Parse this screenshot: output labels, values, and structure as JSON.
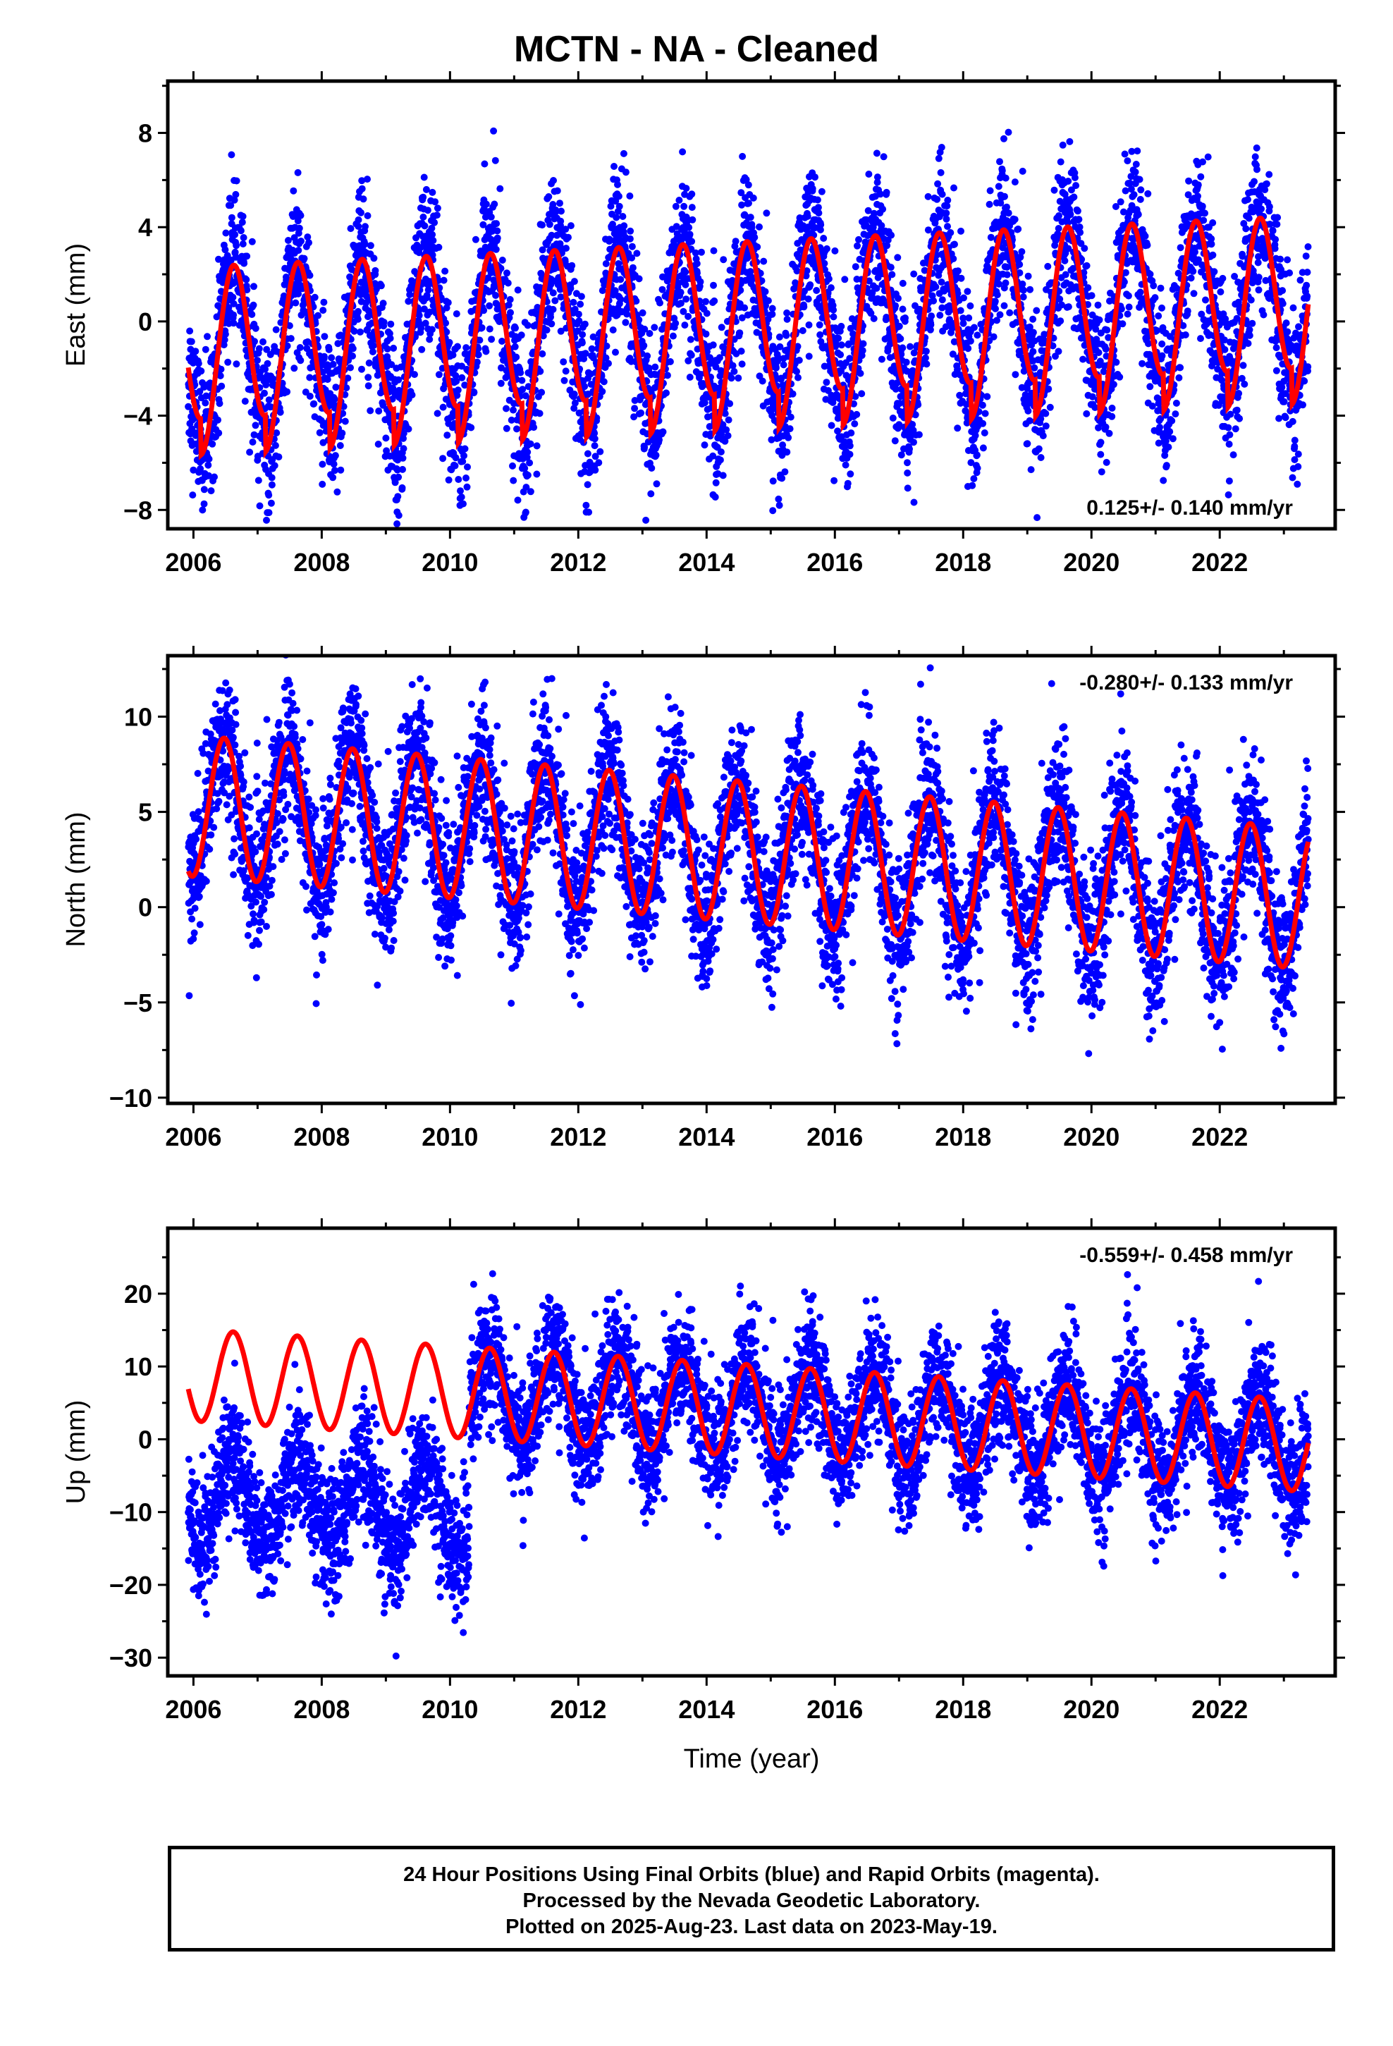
{
  "title": "MCTN  - NA - Cleaned",
  "footer": {
    "line1": "24 Hour Positions Using Final Orbits (blue) and Rapid Orbits (magenta).",
    "line2": "Processed by the Nevada Geodetic Laboratory.",
    "line3": "Plotted on 2025-Aug-23. Last data on 2023-May-19."
  },
  "colors": {
    "points": "#0000ff",
    "fit": "#ff0000",
    "frame": "#000000"
  },
  "chart_data": [
    {
      "type": "scatter",
      "panel": "east",
      "xlabel": "",
      "ylabel": "East (mm)",
      "xlim": [
        2005.6,
        2023.8
      ],
      "ylim": [
        -8.8,
        10.2
      ],
      "x_ticks": [
        2006,
        2008,
        2010,
        2012,
        2014,
        2016,
        2018,
        2020,
        2022
      ],
      "y_ticks": [
        -8,
        -4,
        0,
        4,
        8
      ],
      "annotation": "0.125+/- 0.140 mm/yr",
      "annotation_pos": "bottom-right",
      "start": 2005.92,
      "end": 2023.38,
      "fit": {
        "trend_mm_yr": 0.125,
        "offset": 0.0,
        "annual_amp": 3.6,
        "annual_peak": 0.62,
        "ramp_start": -4.0,
        "ramp_end": 2.2,
        "break_year": null,
        "pre_break_offset": 0
      },
      "scatter_sd": 1.6
    },
    {
      "type": "scatter",
      "panel": "north",
      "xlabel": "",
      "ylabel": "North (mm)",
      "xlim": [
        2005.6,
        2023.8
      ],
      "ylim": [
        -10.3,
        13.2
      ],
      "x_ticks": [
        2006,
        2008,
        2010,
        2012,
        2014,
        2016,
        2018,
        2020,
        2022
      ],
      "y_ticks": [
        -10,
        -5,
        0,
        5,
        10
      ],
      "annotation": "-0.280+/- 0.133 mm/yr",
      "annotation_pos": "top-right",
      "start": 2005.92,
      "end": 2023.38,
      "fit": {
        "trend_mm_yr": -0.28,
        "offset": 2.9,
        "annual_amp": 3.7,
        "annual_peak": 0.48,
        "ramp_start": 0,
        "ramp_end": 0,
        "break_year": null,
        "pre_break_offset": 0
      },
      "scatter_sd": 1.9
    },
    {
      "type": "scatter",
      "panel": "up",
      "xlabel": "Time (year)",
      "ylabel": "Up (mm)",
      "xlim": [
        2005.6,
        2023.8
      ],
      "ylim": [
        -32.5,
        29.0
      ],
      "x_ticks": [
        2006,
        2008,
        2010,
        2012,
        2014,
        2016,
        2018,
        2020,
        2022
      ],
      "y_ticks": [
        -30,
        -20,
        -10,
        0,
        10,
        20
      ],
      "annotation": "-0.559+/- 0.458 mm/yr",
      "annotation_pos": "top-right",
      "start": 2005.92,
      "end": 2023.38,
      "fit": {
        "trend_mm_yr": -0.559,
        "offset": 4.0,
        "annual_amp": 6.3,
        "annual_peak": 0.62,
        "ramp_start": 0,
        "ramp_end": 0,
        "break_year": 2010.3,
        "pre_break_offset": -16.5
      },
      "scatter_sd": 4.2
    }
  ]
}
